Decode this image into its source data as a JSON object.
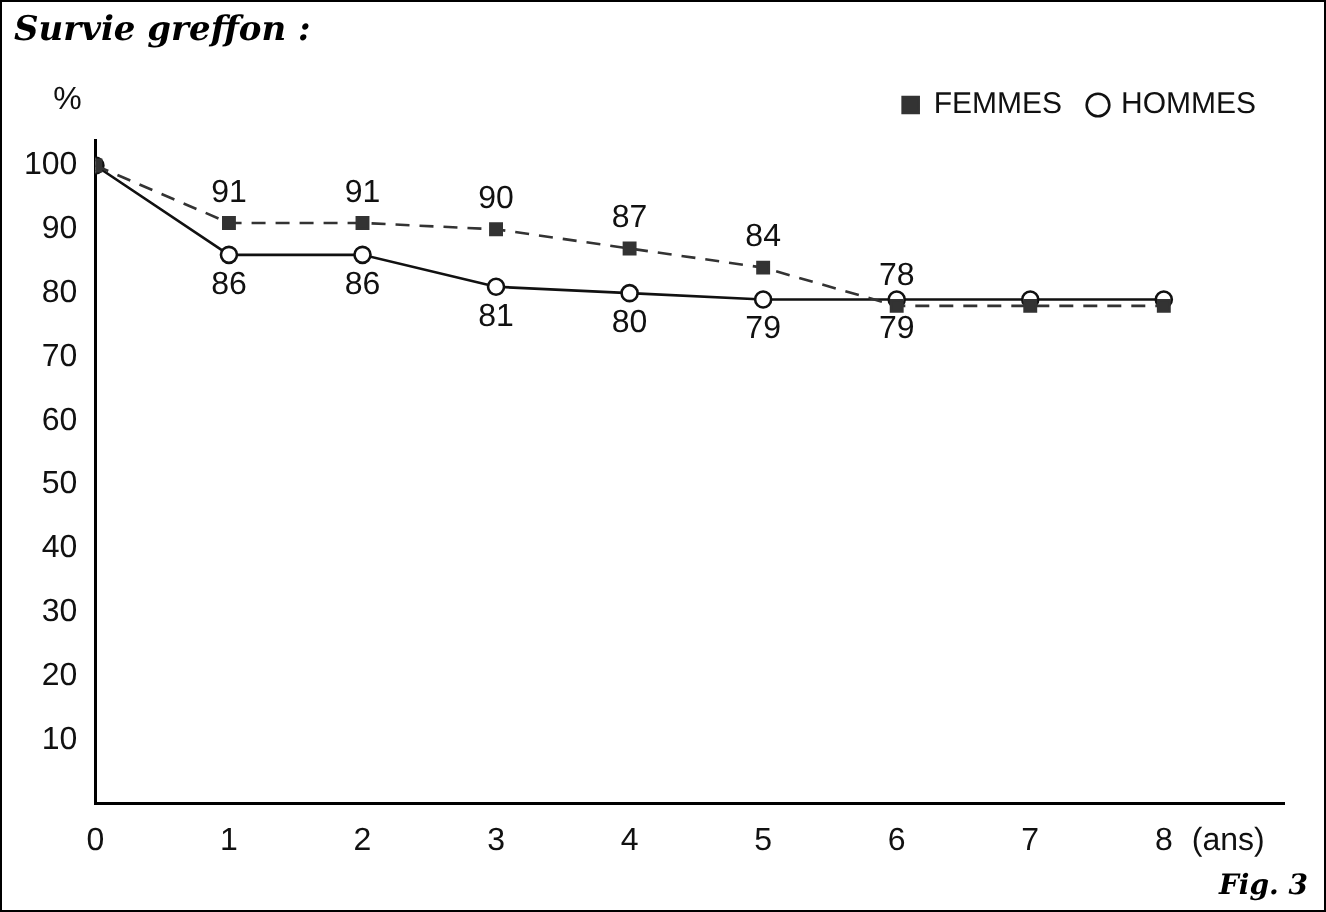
{
  "chart_data": {
    "type": "line",
    "title": "Survie greffon :",
    "xlabel": "(ans)",
    "ylabel": "%",
    "x": [
      0,
      1,
      2,
      3,
      4,
      5,
      6,
      7,
      8
    ],
    "series": [
      {
        "name": "HOMMES",
        "color": "#111111",
        "marker": "circle",
        "line_style": "solid",
        "values": [
          100,
          86,
          86,
          81,
          80,
          79,
          79,
          79,
          79
        ],
        "value_labels": [
          null,
          "86",
          "86",
          "81",
          "80",
          "79",
          "79",
          null,
          null
        ]
      },
      {
        "name": "FEMMES",
        "color": "#333333",
        "marker": "square",
        "line_style": "dashed",
        "values": [
          100,
          91,
          91,
          90,
          87,
          84,
          78,
          78,
          78
        ],
        "value_labels": [
          null,
          "91",
          "91",
          "90",
          "87",
          "84",
          "78",
          null,
          null
        ]
      }
    ],
    "xlim": [
      0,
      8.9
    ],
    "xticks": [
      0,
      1,
      2,
      3,
      4,
      5,
      6,
      7,
      8
    ],
    "ylim": [
      0,
      104
    ],
    "yticks": [
      10,
      20,
      30,
      40,
      50,
      60,
      70,
      80,
      90,
      100
    ],
    "grid": false,
    "legend": "top right",
    "annotations": [
      "Fig. 3"
    ]
  }
}
